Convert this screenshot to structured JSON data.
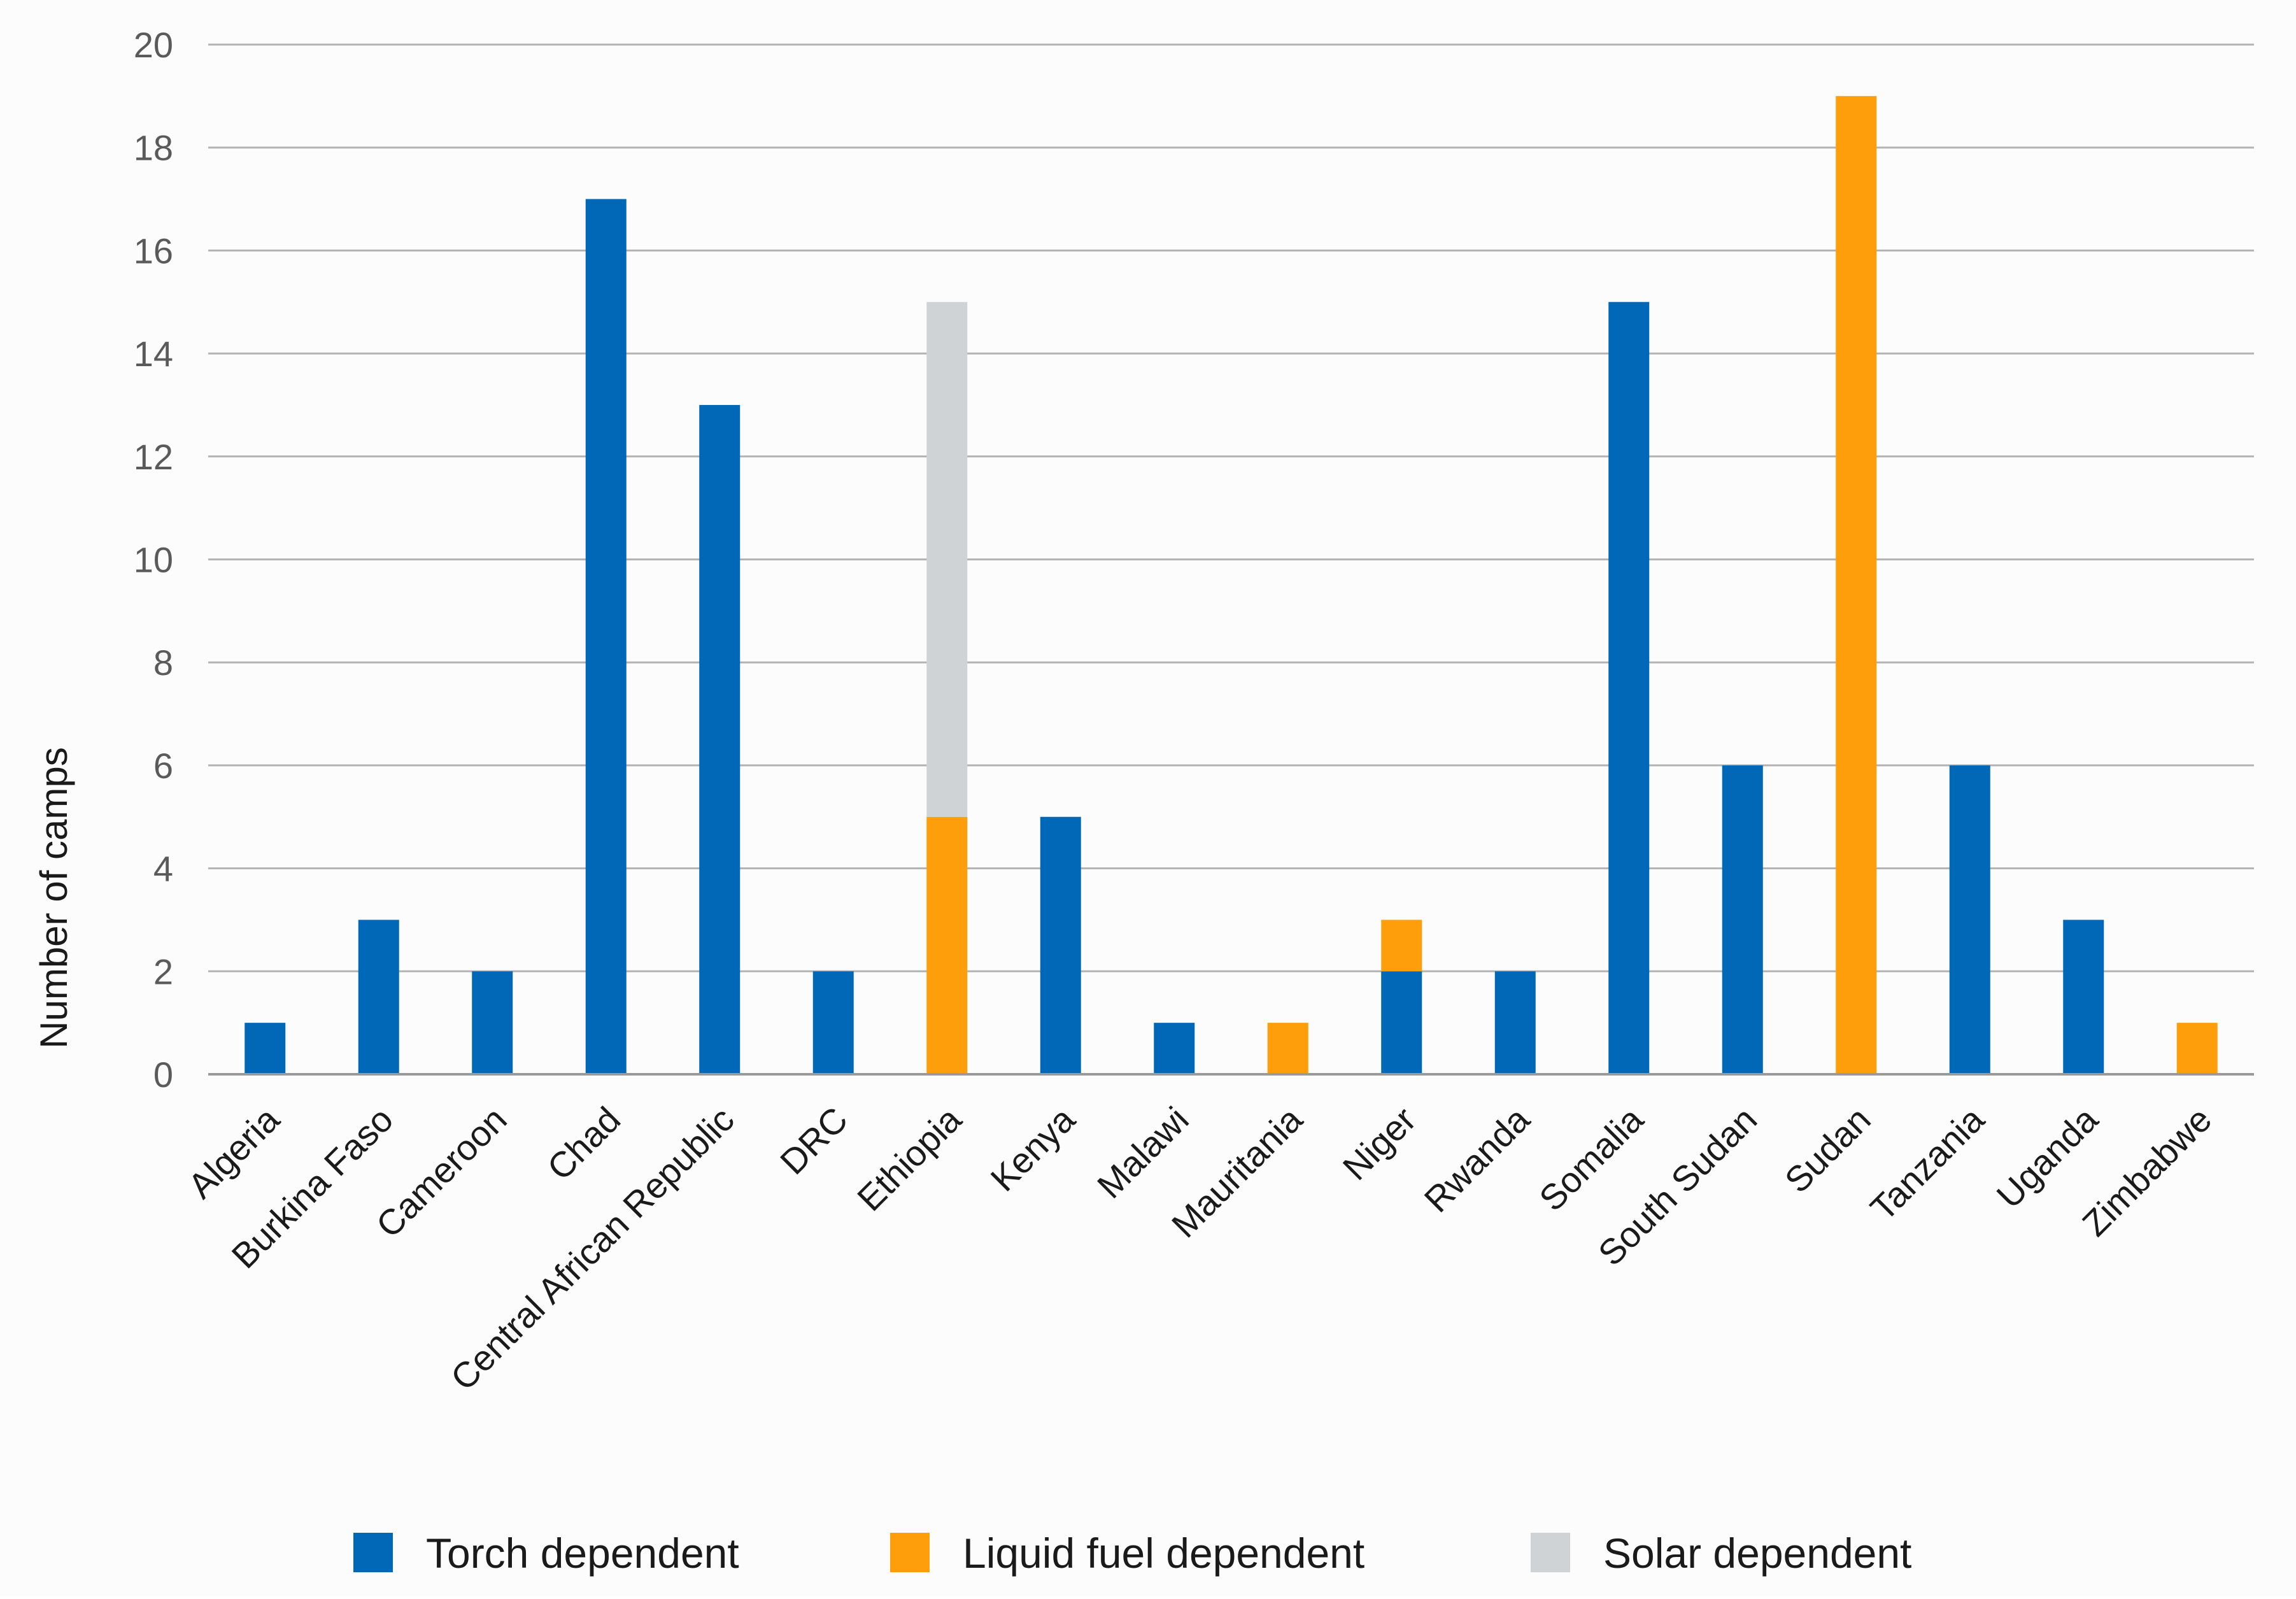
{
  "chart_data": {
    "type": "bar",
    "stacked": true,
    "title": "",
    "xlabel": "",
    "ylabel": "Number of camps",
    "ylim": [
      0,
      20
    ],
    "yticks": [
      0,
      2,
      4,
      6,
      8,
      10,
      12,
      14,
      16,
      18,
      20
    ],
    "grid": true,
    "legend_position": "bottom",
    "categories": [
      "Algeria",
      "Burkina Faso",
      "Cameroon",
      "Chad",
      "Central African Republic",
      "DRC",
      "Ethiopia",
      "Kenya",
      "Malawi",
      "Mauritania",
      "Niger",
      "Rwanda",
      "Somalia",
      "South Sudan",
      "Sudan",
      "Tanzania",
      "Uganda",
      "Zimbabwe"
    ],
    "series": [
      {
        "name": "Torch dependent",
        "color": "#0068b7",
        "values": [
          1,
          3,
          2,
          17,
          13,
          2,
          0,
          5,
          1,
          0,
          2,
          2,
          15,
          6,
          0,
          6,
          3,
          0
        ]
      },
      {
        "name": "Liquid fuel dependent",
        "color": "#ff9e0b",
        "values": [
          0,
          0,
          0,
          0,
          0,
          0,
          5,
          0,
          0,
          1,
          1,
          0,
          0,
          0,
          19,
          0,
          0,
          1
        ]
      },
      {
        "name": "Solar dependent",
        "color": "#d0d3d6",
        "values": [
          0,
          0,
          0,
          0,
          0,
          0,
          10,
          0,
          0,
          0,
          0,
          0,
          0,
          0,
          0,
          0,
          0,
          0
        ]
      }
    ],
    "style": {
      "gridline_color": "#b3b3b3",
      "axis_line_color": "#9a9a9a",
      "background": "#fcfcfc"
    }
  }
}
